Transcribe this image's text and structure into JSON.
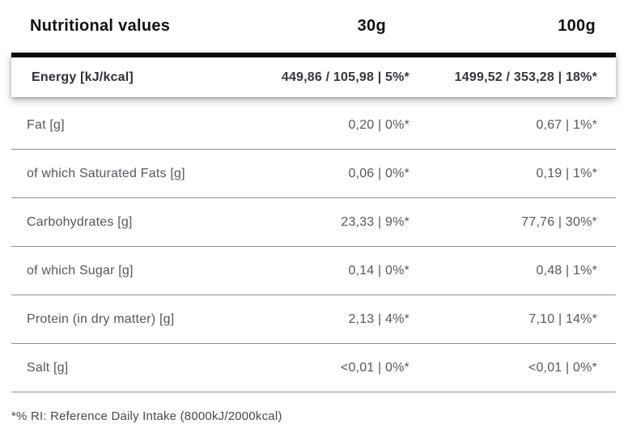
{
  "header": {
    "title": "Nutritional values",
    "col_30g": "30g",
    "col_100g": "100g"
  },
  "energy_row": {
    "label": "Energy [kJ/kcal]",
    "per_30g": "449,86 / 105,98 | 5%*",
    "per_100g": "1499,52 / 353,28 | 18%*"
  },
  "rows": [
    {
      "label": "Fat [g]",
      "per_30g": "0,20 | 0%*",
      "per_100g": "0,67 | 1%*"
    },
    {
      "label": "of which Saturated Fats [g]",
      "per_30g": "0,06 | 0%*",
      "per_100g": "0,19 | 1%*"
    },
    {
      "label": "Carbohydrates [g]",
      "per_30g": "23,33 | 9%*",
      "per_100g": "77,76 | 30%*"
    },
    {
      "label": "of which Sugar [g]",
      "per_30g": "0,14 | 0%*",
      "per_100g": "0,48 | 1%*"
    },
    {
      "label": "Protein (in dry matter) [g]",
      "per_30g": "2,13 | 4%*",
      "per_100g": "7,10 | 14%*"
    },
    {
      "label": "Salt [g]",
      "per_30g": "<0,01 | 0%*",
      "per_100g": "<0,01 | 0%*"
    }
  ],
  "footnote": "*% RI: Reference Daily Intake (8000kJ/2000kcal)",
  "colors": {
    "header_text": "#101010",
    "row_text": "#55585e",
    "energy_text": "#35373c",
    "divider": "#8f8f8f",
    "accent_bar": "#0b0b0b",
    "card_background": "#ffffff",
    "page_background": "#ffffff"
  }
}
